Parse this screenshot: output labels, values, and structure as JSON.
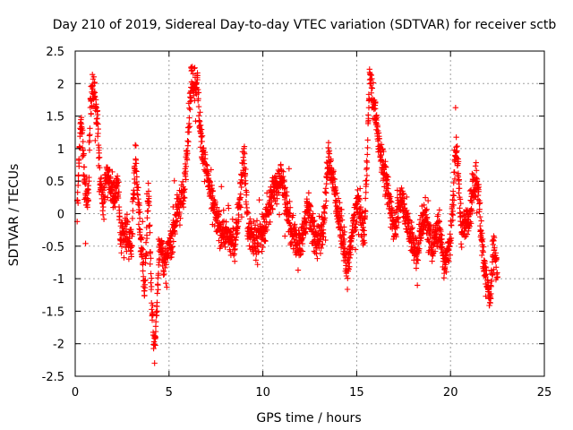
{
  "chart_data": {
    "type": "scatter",
    "title": "Day 210 of 2019, Sidereal Day-to-day VTEC variation (SDTVAR) for receiver sctb",
    "xlabel": "GPS time / hours",
    "ylabel": "SDTVAR / TECUs",
    "xlim": [
      0,
      25
    ],
    "ylim": [
      -2.5,
      2.5
    ],
    "x_ticks": [
      0,
      5,
      10,
      15,
      20,
      25
    ],
    "y_ticks": [
      -2.5,
      -2,
      -1.5,
      -1,
      -0.5,
      0,
      0.5,
      1,
      1.5,
      2,
      2.5
    ],
    "x_tick_labels": [
      "0",
      "5",
      "10",
      "15",
      "20",
      "25"
    ],
    "y_tick_labels": [
      "-2.5",
      "-2",
      "-1.5",
      "-1",
      "-0.5",
      "0",
      "0.5",
      "1",
      "1.5",
      "2",
      "2.5"
    ],
    "grid": true,
    "marker": "+",
    "marker_color": "#ff0000",
    "series": [
      {
        "name": "SDTVAR",
        "x_range": [
          0.1,
          22.5
        ],
        "profile": [
          [
            0.1,
            0.0
          ],
          [
            0.2,
            0.8
          ],
          [
            0.3,
            1.5
          ],
          [
            0.4,
            1.0
          ],
          [
            0.55,
            0.3
          ],
          [
            0.7,
            0.3
          ],
          [
            0.8,
            1.6
          ],
          [
            0.95,
            2.0
          ],
          [
            1.1,
            1.6
          ],
          [
            1.2,
            1.4
          ],
          [
            1.3,
            0.6
          ],
          [
            1.5,
            0.1
          ],
          [
            1.7,
            0.6
          ],
          [
            2.0,
            0.3
          ],
          [
            2.3,
            0.4
          ],
          [
            2.4,
            -0.4
          ],
          [
            2.7,
            -0.3
          ],
          [
            3.0,
            -0.5
          ],
          [
            3.2,
            0.9
          ],
          [
            3.4,
            0.0
          ],
          [
            3.7,
            -1.2
          ],
          [
            3.9,
            0.4
          ],
          [
            4.1,
            -1.6
          ],
          [
            4.25,
            -2.1
          ],
          [
            4.5,
            -0.4
          ],
          [
            4.8,
            -0.8
          ],
          [
            5.1,
            -0.4
          ],
          [
            5.5,
            0.1
          ],
          [
            5.8,
            0.3
          ],
          [
            6.0,
            1.2
          ],
          [
            6.2,
            2.0
          ],
          [
            6.5,
            2.0
          ],
          [
            6.7,
            1.2
          ],
          [
            7.0,
            0.6
          ],
          [
            7.3,
            0.2
          ],
          [
            7.6,
            -0.2
          ],
          [
            8.0,
            -0.3
          ],
          [
            8.5,
            -0.5
          ],
          [
            8.8,
            0.3
          ],
          [
            9.0,
            0.9
          ],
          [
            9.2,
            -0.2
          ],
          [
            9.5,
            -0.4
          ],
          [
            10.0,
            -0.3
          ],
          [
            10.5,
            0.3
          ],
          [
            11.0,
            0.6
          ],
          [
            11.5,
            -0.3
          ],
          [
            12.0,
            -0.5
          ],
          [
            12.4,
            0.1
          ],
          [
            12.8,
            -0.4
          ],
          [
            13.2,
            -0.3
          ],
          [
            13.5,
            0.9
          ],
          [
            13.8,
            0.4
          ],
          [
            14.2,
            -0.3
          ],
          [
            14.5,
            -0.9
          ],
          [
            14.8,
            -0.2
          ],
          [
            15.1,
            0.2
          ],
          [
            15.4,
            -0.4
          ],
          [
            15.7,
            2.1
          ],
          [
            16.0,
            1.5
          ],
          [
            16.3,
            0.9
          ],
          [
            16.6,
            0.4
          ],
          [
            17.0,
            -0.2
          ],
          [
            17.4,
            0.3
          ],
          [
            17.8,
            -0.3
          ],
          [
            18.2,
            -0.6
          ],
          [
            18.6,
            0.0
          ],
          [
            19.0,
            -0.5
          ],
          [
            19.4,
            -0.2
          ],
          [
            19.7,
            -0.8
          ],
          [
            20.0,
            -0.4
          ],
          [
            20.3,
            1.1
          ],
          [
            20.6,
            -0.3
          ],
          [
            21.0,
            0.0
          ],
          [
            21.4,
            0.6
          ],
          [
            21.7,
            -0.5
          ],
          [
            21.9,
            -1.0
          ],
          [
            22.1,
            -1.4
          ],
          [
            22.3,
            -0.5
          ],
          [
            22.5,
            -1.0
          ]
        ],
        "spread": 0.45,
        "approx_point_count": 2600
      }
    ]
  }
}
